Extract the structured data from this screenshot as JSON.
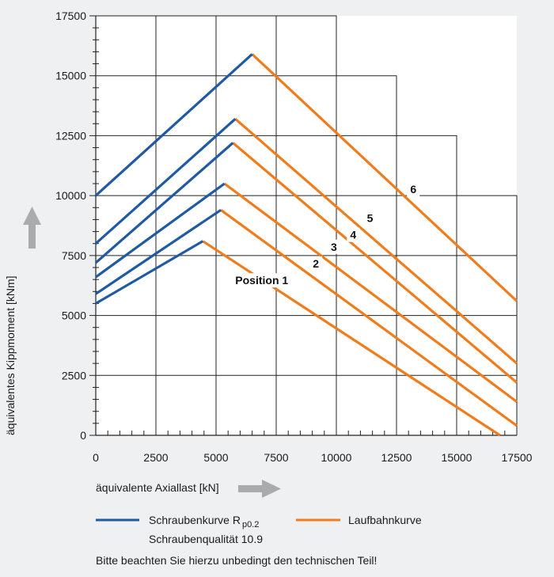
{
  "chart_data": {
    "type": "line",
    "xlabel": "äquivalente Axiallast [kN]",
    "ylabel": "äquivalentes Kippmoment [kNm]",
    "xlim": [
      0,
      17500
    ],
    "ylim": [
      0,
      17500
    ],
    "x_ticks": [
      "0",
      "2500",
      "5000",
      "7500",
      "10000",
      "12500",
      "15000",
      "17500"
    ],
    "y_ticks": [
      "0",
      "2500",
      "5000",
      "7500",
      "10000",
      "12500",
      "15000",
      "17500"
    ],
    "minor_step": 500,
    "grid": true,
    "series_styles": {
      "screw": {
        "name": "Schraubenkurve R p0.2",
        "color": "#1f5aa3"
      },
      "race": {
        "name": "Laufbahnkurve",
        "color": "#f07c1c"
      }
    },
    "curves": [
      {
        "label": "Position 1",
        "screw": [
          [
            0,
            5500
          ],
          [
            4450,
            8100
          ]
        ],
        "race": [
          [
            4450,
            8100
          ],
          [
            16800,
            0
          ]
        ]
      },
      {
        "label": "2",
        "screw": [
          [
            0,
            5900
          ],
          [
            5200,
            9400
          ]
        ],
        "race": [
          [
            5200,
            9400
          ],
          [
            17500,
            400
          ]
        ]
      },
      {
        "label": "3",
        "screw": [
          [
            0,
            6600
          ],
          [
            5350,
            10500
          ]
        ],
        "race": [
          [
            5350,
            10500
          ],
          [
            17500,
            1400
          ]
        ]
      },
      {
        "label": "4",
        "screw": [
          [
            0,
            7200
          ],
          [
            5700,
            12200
          ]
        ],
        "race": [
          [
            5700,
            12200
          ],
          [
            17500,
            2200
          ]
        ]
      },
      {
        "label": "5",
        "screw": [
          [
            0,
            8000
          ],
          [
            5800,
            13200
          ]
        ],
        "race": [
          [
            5800,
            13200
          ],
          [
            17500,
            3000
          ]
        ]
      },
      {
        "label": "6",
        "screw": [
          [
            0,
            10000
          ],
          [
            6500,
            15900
          ]
        ],
        "race": [
          [
            6500,
            15900
          ],
          [
            17500,
            5600
          ]
        ]
      }
    ],
    "step_boundary": [
      [
        0,
        17500
      ],
      [
        10000,
        17500
      ],
      [
        10000,
        15000
      ],
      [
        12500,
        15000
      ],
      [
        12500,
        12500
      ],
      [
        15000,
        12500
      ],
      [
        15000,
        10000
      ],
      [
        17500,
        10000
      ],
      [
        17500,
        0
      ]
    ]
  },
  "legend": {
    "screw_label": "Schraubenkurve  R",
    "screw_sub": "p0.2",
    "screw_line2": "Schraubenqualität 10.9",
    "race_label": "Laufbahnkurve"
  },
  "labels": {
    "position_word": "Position",
    "footnote": "Bitte beachten Sie hierzu unbedingt den technischen Teil!"
  }
}
